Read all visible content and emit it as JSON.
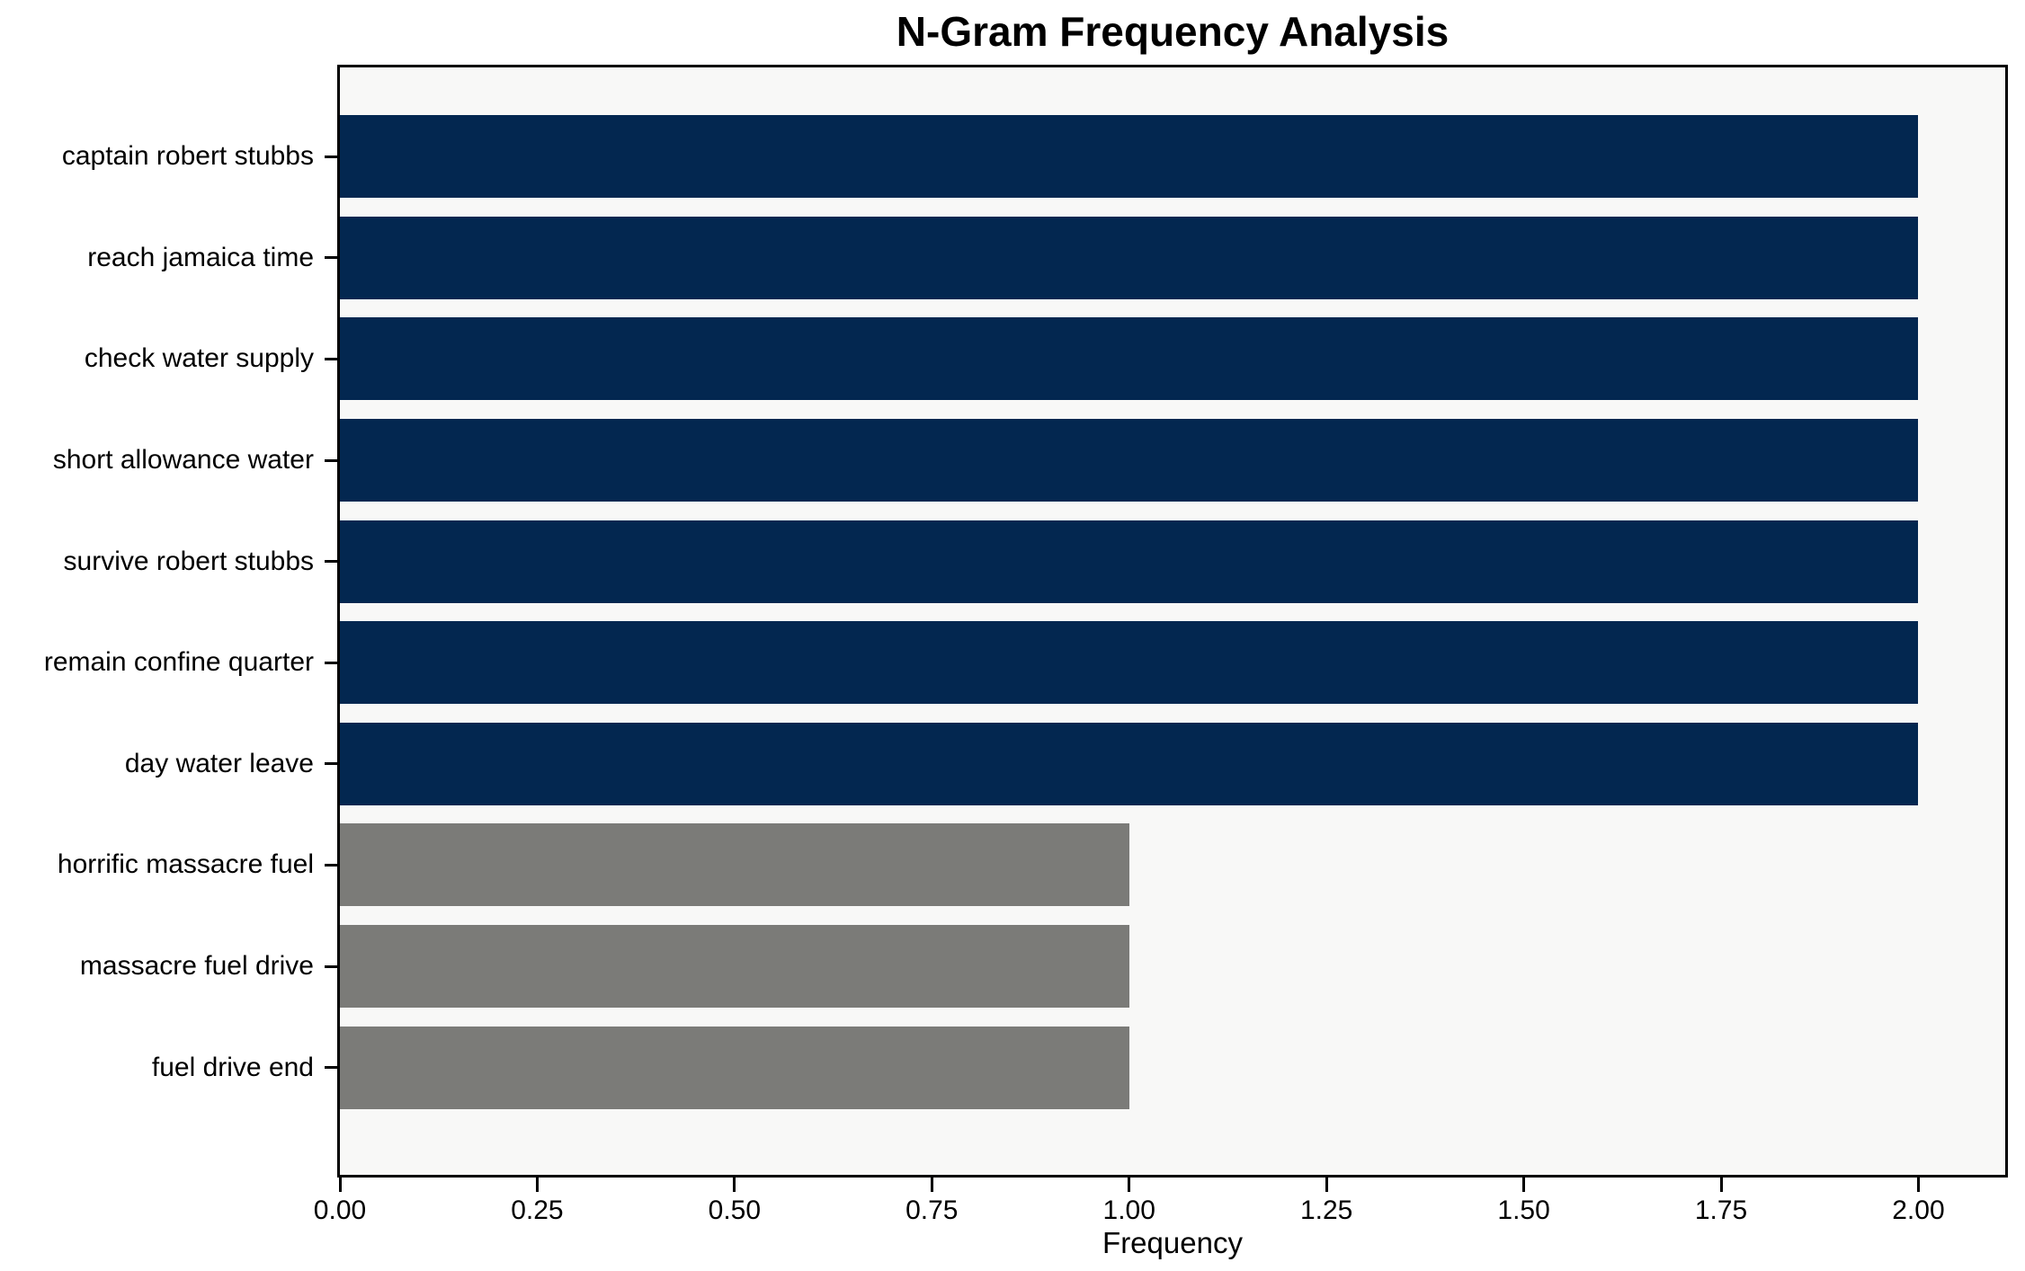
{
  "chart_data": {
    "type": "bar",
    "orientation": "horizontal",
    "title": "N-Gram Frequency Analysis",
    "xlabel": "Frequency",
    "ylabel": "",
    "categories": [
      "captain robert stubbs",
      "reach jamaica time",
      "check water supply",
      "short allowance water",
      "survive robert stubbs",
      "remain confine quarter",
      "day water leave",
      "horrific massacre fuel",
      "massacre fuel drive",
      "fuel drive end"
    ],
    "values": [
      2,
      2,
      2,
      2,
      2,
      2,
      2,
      1,
      1,
      1
    ],
    "bar_colors": [
      "#032750",
      "#032750",
      "#032750",
      "#032750",
      "#032750",
      "#032750",
      "#032750",
      "#7b7b78",
      "#7b7b78",
      "#7b7b78"
    ],
    "xlim": [
      0,
      2.11
    ],
    "xticks": [
      0,
      0.25,
      0.5,
      0.75,
      1,
      1.25,
      1.5,
      1.75,
      2
    ],
    "xtick_labels": [
      "0.00",
      "0.25",
      "0.50",
      "0.75",
      "1.00",
      "1.25",
      "1.50",
      "1.75",
      "2.00"
    ],
    "grid": false,
    "legend": null,
    "colors": {
      "navy": "#032750",
      "gray": "#7b7b78",
      "plot_background": "#f8f8f7",
      "figure_background": "#ffffff",
      "spine": "#000000",
      "text": "#000000"
    }
  }
}
